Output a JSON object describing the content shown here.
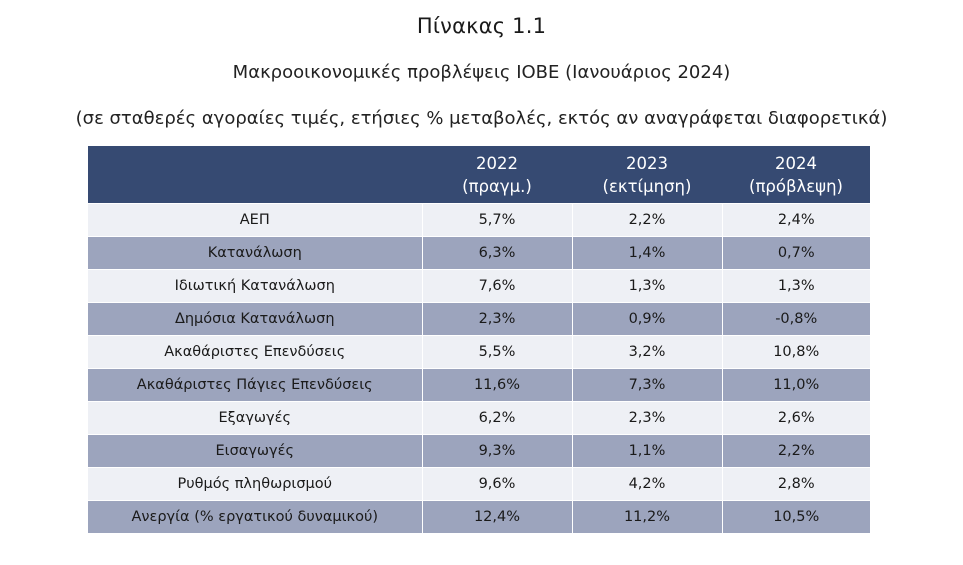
{
  "title": "Πίνακας 1.1",
  "subtitle": "Μακροοικονομικές προβλέψεις ΙΟΒΕ (Ιανουάριος 2024)",
  "note": "(σε σταθερές αγοραίες τιμές, ετήσιες % μεταβολές, εκτός αν αναγράφεται διαφορετικά)",
  "colors": {
    "header_bg": "#364a72",
    "row_light": "#eef0f5",
    "row_dark": "#9ca4bd"
  },
  "table": {
    "headers": [
      {
        "year": "",
        "label": ""
      },
      {
        "year": "2022",
        "label": "(πραγμ.)"
      },
      {
        "year": "2023",
        "label": "(εκτίμηση)"
      },
      {
        "year": "2024",
        "label": "(πρόβλεψη)"
      }
    ],
    "rows": [
      {
        "label": "ΑΕΠ",
        "v2022": "5,7%",
        "v2023": "2,2%",
        "v2024": "2,4%"
      },
      {
        "label": "Κατανάλωση",
        "v2022": "6,3%",
        "v2023": "1,4%",
        "v2024": "0,7%"
      },
      {
        "label": "Ιδιωτική Κατανάλωση",
        "v2022": "7,6%",
        "v2023": "1,3%",
        "v2024": "1,3%"
      },
      {
        "label": "Δημόσια Κατανάλωση",
        "v2022": "2,3%",
        "v2023": "0,9%",
        "v2024": "-0,8%"
      },
      {
        "label": "Ακαθάριστες Επενδύσεις",
        "v2022": "5,5%",
        "v2023": "3,2%",
        "v2024": "10,8%"
      },
      {
        "label": "Ακαθάριστες Πάγιες Επενδύσεις",
        "v2022": "11,6%",
        "v2023": "7,3%",
        "v2024": "11,0%"
      },
      {
        "label": "Εξαγωγές",
        "v2022": "6,2%",
        "v2023": "2,3%",
        "v2024": "2,6%"
      },
      {
        "label": "Εισαγωγές",
        "v2022": "9,3%",
        "v2023": "1,1%",
        "v2024": "2,2%"
      },
      {
        "label": "Ρυθμός πληθωρισμού",
        "v2022": "9,6%",
        "v2023": "4,2%",
        "v2024": "2,8%"
      },
      {
        "label": "Ανεργία (% εργατικού δυναμικού)",
        "v2022": "12,4%",
        "v2023": "11,2%",
        "v2024": "10,5%"
      }
    ]
  }
}
